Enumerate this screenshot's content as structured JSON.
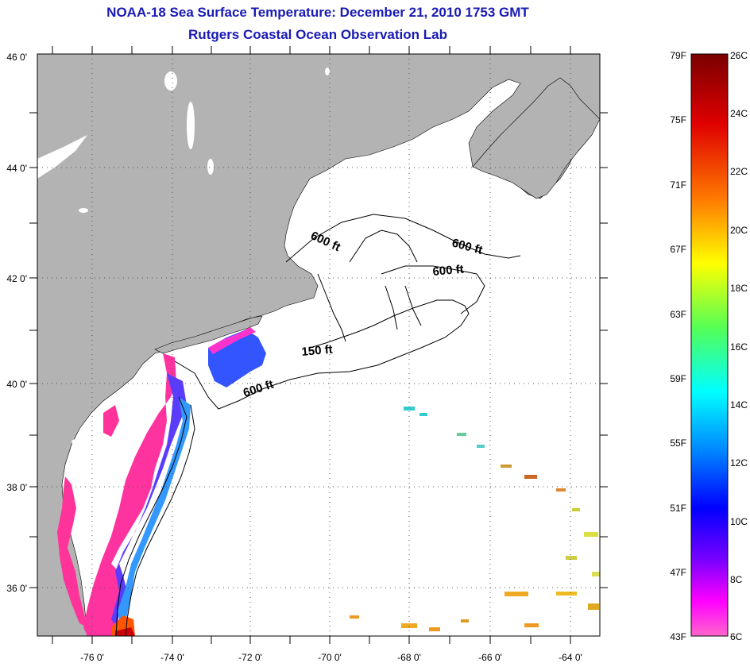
{
  "title": {
    "line1": "NOAA-18 Sea Surface Temperature:  December 21, 2010 1753 GMT",
    "line2": "Rutgers Coastal Ocean Observation Lab"
  },
  "map": {
    "lon_range": [
      -77,
      -63
    ],
    "lat_range": [
      35,
      46
    ],
    "lon_ticks": [
      "-76 0'",
      "-74 0'",
      "-72 0'",
      "-70 0'",
      "-68 0'",
      "-66 0'",
      "-64 0'"
    ],
    "lat_ticks": [
      "46 0'",
      "44 0'",
      "42 0'",
      "40 0'",
      "38 0'",
      "36 0'"
    ],
    "contour_labels": [
      "600 ft",
      "600 ft",
      "600 ft",
      "150 ft",
      "600 ft"
    ]
  },
  "colorbar": {
    "f_labels": [
      "79F",
      "75F",
      "71F",
      "67F",
      "63F",
      "59F",
      "55F",
      "51F",
      "47F",
      "43F"
    ],
    "c_labels": [
      "26C",
      "24C",
      "22C",
      "20C",
      "18C",
      "16C",
      "14C",
      "12C",
      "10C",
      "8C",
      "6C"
    ],
    "colors": [
      "#7a0000",
      "#ff0000",
      "#ff8800",
      "#ffff00",
      "#00ff66",
      "#00ffff",
      "#0066ff",
      "#0000ff",
      "#8800ff",
      "#ff00ff",
      "#ff66cc"
    ]
  }
}
